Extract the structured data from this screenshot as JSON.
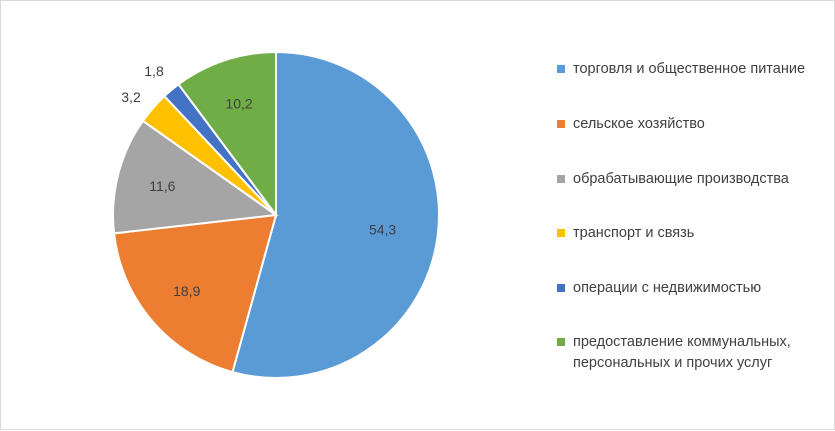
{
  "chart_data": {
    "type": "pie",
    "title": "",
    "legend_position": "right",
    "series": [
      {
        "values": [
          54.3,
          18.9,
          11.6,
          3.2,
          1.8,
          10.2
        ],
        "labels": [
          "54,3",
          "18,9",
          "11,6",
          "3,2",
          "1,8",
          "10,2"
        ],
        "categories": [
          "торговля и общественное питание",
          "сельское хозяйство",
          "обрабатывающие производства",
          "транспорт и связь",
          "операции с недвижимостью",
          "предоставление коммунальных, персональных и прочих услуг"
        ],
        "colors": [
          "#5B9BD5",
          "#ED7D31",
          "#A5A5A5",
          "#FFC000",
          "#4472C4",
          "#70AD47"
        ]
      }
    ]
  },
  "legend": {
    "items": [
      {
        "label": "торговля и общественное питание",
        "color": "#5B9BD5"
      },
      {
        "label": "сельское хозяйство",
        "color": "#ED7D31"
      },
      {
        "label": "обрабатывающие производства",
        "color": "#A5A5A5"
      },
      {
        "label": "транспорт и связь",
        "color": "#FFC000"
      },
      {
        "label": "операции с недвижимостью",
        "color": "#4472C4"
      },
      {
        "label": "предоставление коммунальных, персональных и прочих услуг",
        "color": "#70AD47"
      }
    ]
  }
}
